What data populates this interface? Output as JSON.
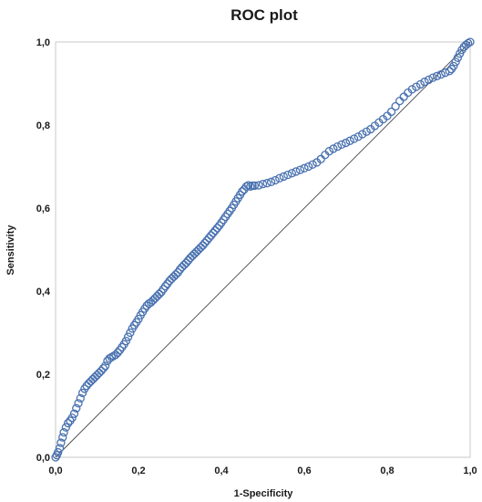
{
  "chart_data": {
    "type": "scatter",
    "title": "ROC plot",
    "xlabel": "1-Specificity",
    "ylabel": "Sensitivity",
    "xlim": [
      0,
      1
    ],
    "ylim": [
      0,
      1
    ],
    "x_ticks": [
      "0,0",
      "0,2",
      "0,4",
      "0,6",
      "0,8",
      "1,0"
    ],
    "y_ticks": [
      "0,0",
      "0,2",
      "0,4",
      "0,6",
      "0,8",
      "1,0"
    ],
    "grid": false,
    "legend": "none",
    "marker_color": "#4a72b0",
    "reference_line_color": "#444444",
    "series": [
      {
        "type": "scatter",
        "marker": "open-circle",
        "points": [
          [
            0.0,
            0.0
          ],
          [
            0.003,
            0.005
          ],
          [
            0.006,
            0.012
          ],
          [
            0.01,
            0.022
          ],
          [
            0.013,
            0.035
          ],
          [
            0.017,
            0.048
          ],
          [
            0.02,
            0.06
          ],
          [
            0.025,
            0.072
          ],
          [
            0.03,
            0.082
          ],
          [
            0.035,
            0.088
          ],
          [
            0.04,
            0.095
          ],
          [
            0.045,
            0.105
          ],
          [
            0.05,
            0.118
          ],
          [
            0.055,
            0.13
          ],
          [
            0.06,
            0.142
          ],
          [
            0.065,
            0.155
          ],
          [
            0.07,
            0.165
          ],
          [
            0.075,
            0.172
          ],
          [
            0.08,
            0.178
          ],
          [
            0.085,
            0.183
          ],
          [
            0.09,
            0.188
          ],
          [
            0.095,
            0.193
          ],
          [
            0.1,
            0.198
          ],
          [
            0.105,
            0.203
          ],
          [
            0.11,
            0.208
          ],
          [
            0.115,
            0.214
          ],
          [
            0.12,
            0.22
          ],
          [
            0.125,
            0.232
          ],
          [
            0.13,
            0.238
          ],
          [
            0.135,
            0.241
          ],
          [
            0.14,
            0.244
          ],
          [
            0.145,
            0.247
          ],
          [
            0.15,
            0.252
          ],
          [
            0.155,
            0.258
          ],
          [
            0.16,
            0.265
          ],
          [
            0.165,
            0.272
          ],
          [
            0.17,
            0.28
          ],
          [
            0.175,
            0.29
          ],
          [
            0.18,
            0.3
          ],
          [
            0.185,
            0.31
          ],
          [
            0.19,
            0.318
          ],
          [
            0.195,
            0.325
          ],
          [
            0.2,
            0.333
          ],
          [
            0.205,
            0.342
          ],
          [
            0.21,
            0.35
          ],
          [
            0.215,
            0.358
          ],
          [
            0.22,
            0.365
          ],
          [
            0.225,
            0.37
          ],
          [
            0.23,
            0.373
          ],
          [
            0.235,
            0.378
          ],
          [
            0.24,
            0.383
          ],
          [
            0.245,
            0.388
          ],
          [
            0.25,
            0.393
          ],
          [
            0.255,
            0.398
          ],
          [
            0.26,
            0.405
          ],
          [
            0.265,
            0.412
          ],
          [
            0.27,
            0.418
          ],
          [
            0.275,
            0.425
          ],
          [
            0.28,
            0.43
          ],
          [
            0.285,
            0.435
          ],
          [
            0.29,
            0.44
          ],
          [
            0.295,
            0.445
          ],
          [
            0.3,
            0.452
          ],
          [
            0.305,
            0.458
          ],
          [
            0.31,
            0.463
          ],
          [
            0.315,
            0.468
          ],
          [
            0.32,
            0.474
          ],
          [
            0.325,
            0.48
          ],
          [
            0.33,
            0.485
          ],
          [
            0.335,
            0.49
          ],
          [
            0.34,
            0.495
          ],
          [
            0.345,
            0.5
          ],
          [
            0.35,
            0.505
          ],
          [
            0.355,
            0.51
          ],
          [
            0.36,
            0.516
          ],
          [
            0.365,
            0.522
          ],
          [
            0.37,
            0.528
          ],
          [
            0.375,
            0.534
          ],
          [
            0.38,
            0.54
          ],
          [
            0.385,
            0.546
          ],
          [
            0.39,
            0.552
          ],
          [
            0.395,
            0.558
          ],
          [
            0.4,
            0.565
          ],
          [
            0.405,
            0.572
          ],
          [
            0.41,
            0.579
          ],
          [
            0.415,
            0.586
          ],
          [
            0.42,
            0.593
          ],
          [
            0.425,
            0.6
          ],
          [
            0.43,
            0.608
          ],
          [
            0.435,
            0.616
          ],
          [
            0.44,
            0.624
          ],
          [
            0.445,
            0.632
          ],
          [
            0.45,
            0.64
          ],
          [
            0.455,
            0.645
          ],
          [
            0.46,
            0.652
          ],
          [
            0.465,
            0.655
          ],
          [
            0.47,
            0.652
          ],
          [
            0.475,
            0.654
          ],
          [
            0.48,
            0.654
          ],
          [
            0.49,
            0.655
          ],
          [
            0.5,
            0.658
          ],
          [
            0.51,
            0.66
          ],
          [
            0.52,
            0.663
          ],
          [
            0.53,
            0.667
          ],
          [
            0.54,
            0.672
          ],
          [
            0.55,
            0.676
          ],
          [
            0.56,
            0.68
          ],
          [
            0.57,
            0.684
          ],
          [
            0.58,
            0.688
          ],
          [
            0.59,
            0.692
          ],
          [
            0.6,
            0.696
          ],
          [
            0.61,
            0.7
          ],
          [
            0.62,
            0.705
          ],
          [
            0.63,
            0.71
          ],
          [
            0.64,
            0.718
          ],
          [
            0.65,
            0.728
          ],
          [
            0.66,
            0.737
          ],
          [
            0.67,
            0.743
          ],
          [
            0.68,
            0.748
          ],
          [
            0.69,
            0.753
          ],
          [
            0.7,
            0.757
          ],
          [
            0.71,
            0.762
          ],
          [
            0.72,
            0.767
          ],
          [
            0.73,
            0.772
          ],
          [
            0.74,
            0.778
          ],
          [
            0.75,
            0.784
          ],
          [
            0.76,
            0.79
          ],
          [
            0.77,
            0.798
          ],
          [
            0.78,
            0.806
          ],
          [
            0.79,
            0.814
          ],
          [
            0.8,
            0.822
          ],
          [
            0.81,
            0.832
          ],
          [
            0.82,
            0.845
          ],
          [
            0.83,
            0.858
          ],
          [
            0.84,
            0.868
          ],
          [
            0.85,
            0.878
          ],
          [
            0.86,
            0.886
          ],
          [
            0.87,
            0.892
          ],
          [
            0.88,
            0.898
          ],
          [
            0.89,
            0.904
          ],
          [
            0.9,
            0.909
          ],
          [
            0.91,
            0.914
          ],
          [
            0.92,
            0.918
          ],
          [
            0.93,
            0.922
          ],
          [
            0.94,
            0.926
          ],
          [
            0.95,
            0.93
          ],
          [
            0.955,
            0.935
          ],
          [
            0.96,
            0.942
          ],
          [
            0.965,
            0.952
          ],
          [
            0.97,
            0.962
          ],
          [
            0.975,
            0.972
          ],
          [
            0.98,
            0.981
          ],
          [
            0.985,
            0.988
          ],
          [
            0.99,
            0.993
          ],
          [
            0.995,
            0.997
          ],
          [
            1.0,
            1.0
          ]
        ]
      },
      {
        "type": "line",
        "style": "reference-diagonal",
        "points": [
          [
            0,
            0
          ],
          [
            1,
            1
          ]
        ]
      }
    ]
  }
}
